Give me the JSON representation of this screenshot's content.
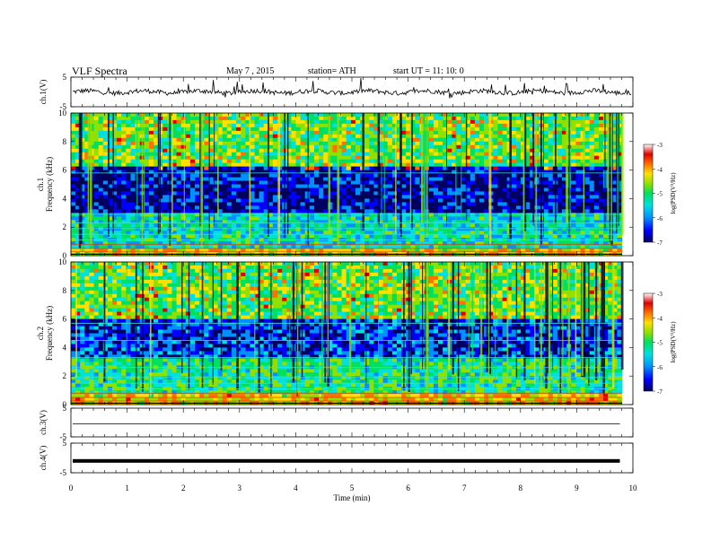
{
  "header": {
    "title": "VLF  Spectra",
    "date": "May 7  , 2015",
    "station": "station= ATH",
    "start": "start  UT =   11: 10: 0"
  },
  "colors": {
    "spectrogram_scale": [
      "#000060",
      "#0000ff",
      "#0090ff",
      "#00e0e0",
      "#00e060",
      "#90e000",
      "#ffe000",
      "#ff7000",
      "#e00000",
      "#ffffff"
    ],
    "trace": "#000000"
  },
  "chart_data": [
    {
      "type": "line",
      "name": "ch1-waveform",
      "ylabel": "ch.1(V)",
      "ylim": [
        -5,
        5
      ],
      "yticks": [
        "5",
        "-5"
      ],
      "xlim": [
        0,
        10
      ],
      "baseline": 0,
      "note_style": "noisy trace with spikes"
    },
    {
      "type": "heatmap",
      "name": "ch1-spectrogram",
      "ylabel": "ch.1\nFrequency (kHz)",
      "ylim": [
        0,
        10
      ],
      "yticks": [
        "10",
        "8",
        "6",
        "4",
        "2",
        "0"
      ],
      "xlim": [
        0,
        9.8
      ],
      "colorbar": {
        "label": "log(PSD(V²/Hz)",
        "range": [
          -7,
          -3
        ],
        "ticks": [
          "-3",
          "-4",
          "-5",
          "-6",
          "-7"
        ]
      }
    },
    {
      "type": "heatmap",
      "name": "ch2-spectrogram",
      "ylabel": "ch.2\nFrequency (kHz)",
      "ylim": [
        0,
        10
      ],
      "yticks": [
        "10",
        "8",
        "6",
        "4",
        "2",
        "0"
      ],
      "xlim": [
        0,
        9.8
      ],
      "colorbar": {
        "label": "log(PSD(V²/Hz)",
        "range": [
          -7,
          -3
        ],
        "ticks": [
          "-3",
          "-4",
          "-5",
          "-6",
          "-7"
        ]
      }
    },
    {
      "type": "line",
      "name": "ch3-waveform",
      "ylabel": "ch.3(V)",
      "ylim": [
        -5,
        5
      ],
      "yticks": [
        "5",
        "-5"
      ],
      "xlim": [
        0,
        9.8
      ],
      "baseline": -0.5
    },
    {
      "type": "line",
      "name": "ch4-waveform",
      "ylabel": "ch.4(V)",
      "ylim": [
        -5,
        5
      ],
      "yticks": [
        "5",
        "-5"
      ],
      "xlim": [
        0,
        9.8
      ],
      "baseline": -1.0
    }
  ],
  "x_axis": {
    "label": "Time  (min)",
    "ticks": [
      "0",
      "1",
      "2",
      "3",
      "4",
      "5",
      "6",
      "7",
      "8",
      "9",
      "10"
    ],
    "xlim": [
      0,
      10
    ]
  }
}
